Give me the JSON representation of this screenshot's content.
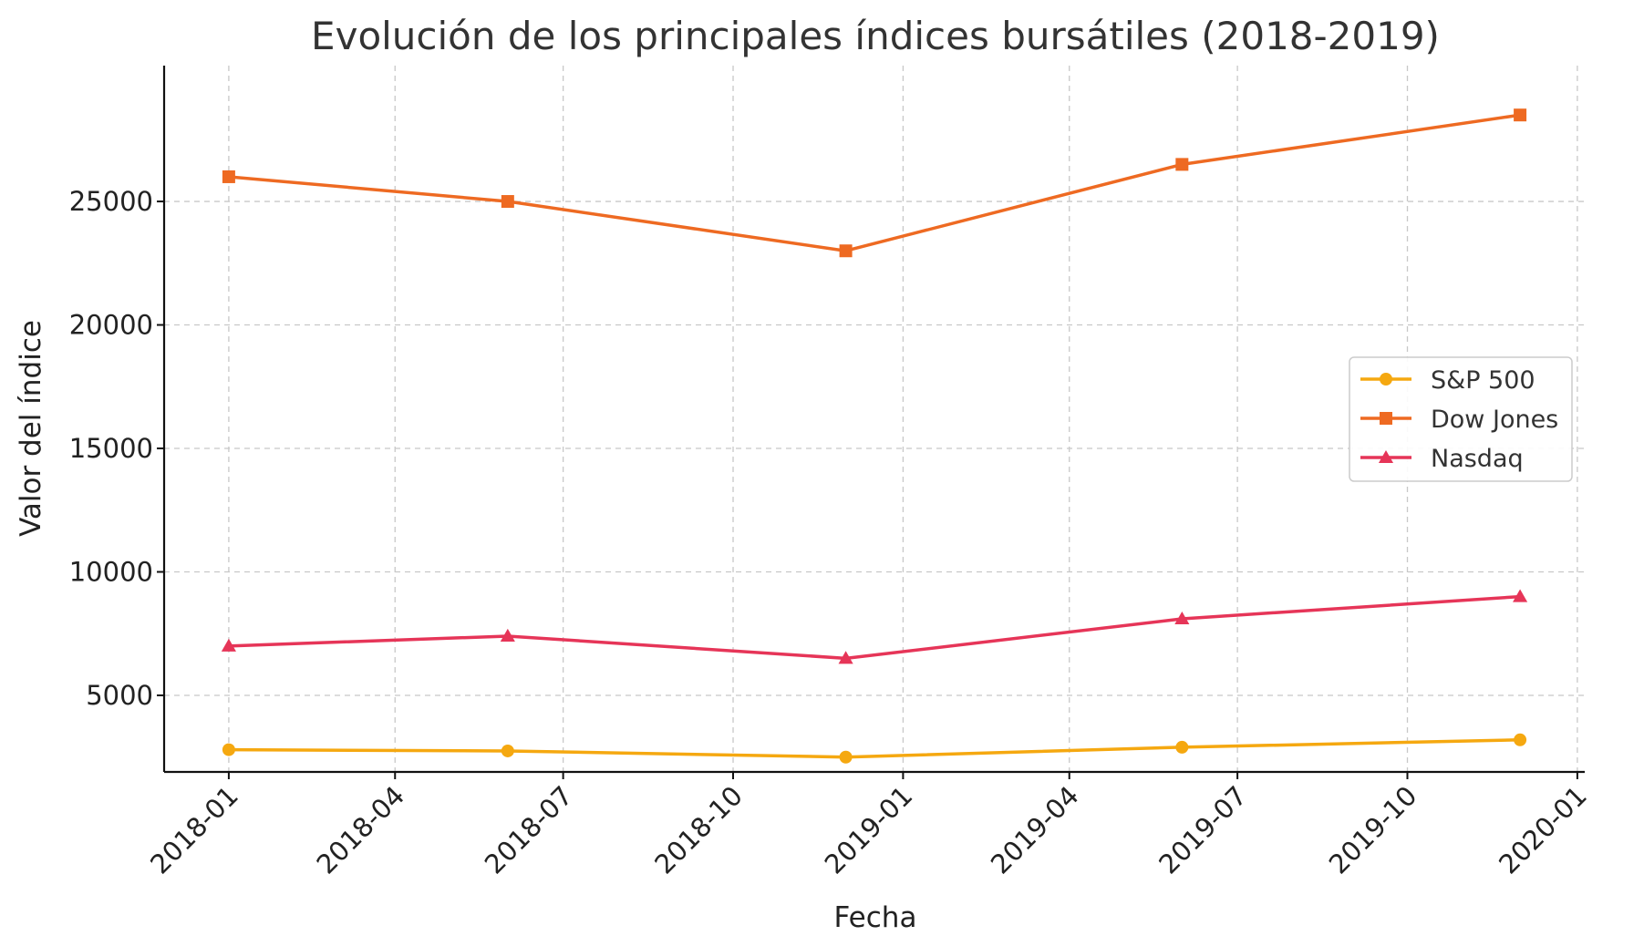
{
  "chart_data": {
    "type": "line",
    "title": "Evolución de los principales índices bursátiles (2018-2019)",
    "xlabel": "Fecha",
    "ylabel": "Valor del índice",
    "x_dates": [
      "2018-01-01",
      "2018-06-01",
      "2018-12-01",
      "2019-06-01",
      "2019-12-01"
    ],
    "xlim": [
      "2017-11-27",
      "2020-01-05"
    ],
    "ylim": [
      1900,
      30500
    ],
    "x_ticks": [
      "2018-01",
      "2018-04",
      "2018-07",
      "2018-10",
      "2019-01",
      "2019-04",
      "2019-07",
      "2019-10",
      "2020-01"
    ],
    "y_ticks": [
      5000,
      10000,
      15000,
      20000,
      25000
    ],
    "grid": true,
    "legend_position": "center-right",
    "series": [
      {
        "name": "S&P 500",
        "values": [
          2800,
          2750,
          2500,
          2900,
          3200
        ],
        "color": "#F5A810",
        "marker": "circle"
      },
      {
        "name": "Dow Jones",
        "values": [
          26000,
          25000,
          23000,
          26500,
          28500
        ],
        "color": "#EE6A22",
        "marker": "square"
      },
      {
        "name": "Nasdaq",
        "values": [
          7000,
          7400,
          6500,
          8100,
          9000
        ],
        "color": "#E63558",
        "marker": "triangle"
      }
    ]
  }
}
